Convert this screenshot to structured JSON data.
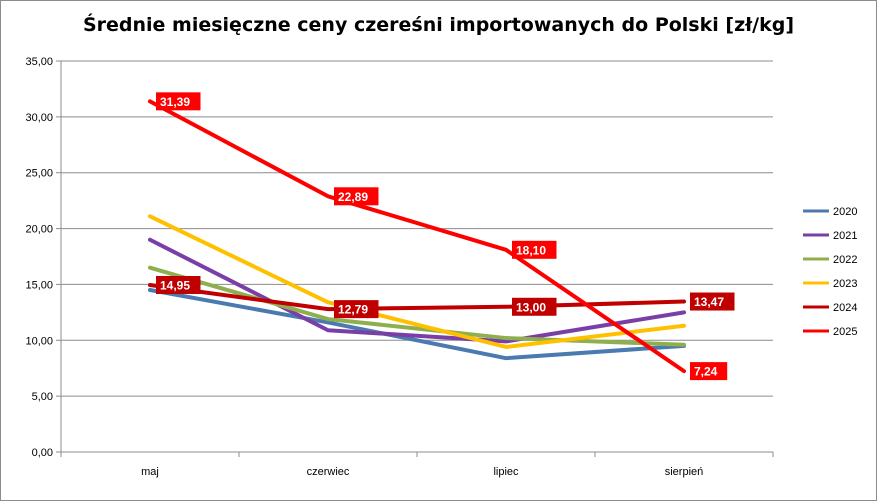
{
  "chart_data": {
    "type": "line",
    "title": "Średnie miesięczne ceny czereśni importowanych do Polski [zł/kg]",
    "xlabel": "",
    "ylabel": "",
    "categories": [
      "maj",
      "czerwiec",
      "lipiec",
      "sierpień"
    ],
    "ylim": [
      0,
      35
    ],
    "yticks": [
      "0,00",
      "5,00",
      "10,00",
      "15,00",
      "20,00",
      "25,00",
      "30,00",
      "35,00"
    ],
    "grid": true,
    "legend_position": "right",
    "series": [
      {
        "name": "2020",
        "color": "#4a7ab0",
        "values": [
          14.5,
          11.6,
          8.4,
          9.5
        ]
      },
      {
        "name": "2021",
        "color": "#7a3fa6",
        "values": [
          19.0,
          10.9,
          9.9,
          12.5
        ]
      },
      {
        "name": "2022",
        "color": "#8faf4f",
        "values": [
          16.5,
          11.9,
          10.2,
          9.6
        ]
      },
      {
        "name": "2023",
        "color": "#ffc000",
        "values": [
          21.1,
          13.4,
          9.4,
          11.3
        ]
      },
      {
        "name": "2024",
        "color": "#c00000",
        "values": [
          14.95,
          12.79,
          13.0,
          13.47
        ],
        "labels": [
          "14,95",
          "12,79",
          "13,00",
          "13,47"
        ]
      },
      {
        "name": "2025",
        "color": "#ff0000",
        "values": [
          31.39,
          22.89,
          18.1,
          7.24
        ],
        "labels": [
          "31,39",
          "22,89",
          "18,10",
          "7,24"
        ]
      }
    ]
  }
}
